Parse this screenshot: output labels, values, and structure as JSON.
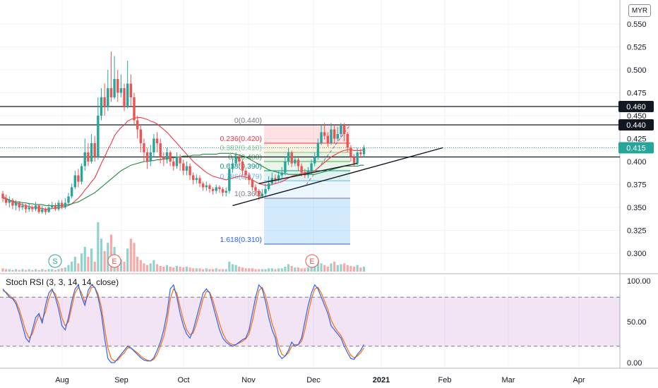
{
  "header": {
    "currency": "MYR"
  },
  "chart_data": {
    "type": "candlestick",
    "x_ticks": [
      "Aug",
      "Sep",
      "Oct",
      "Nov",
      "Dec",
      "2021",
      "Feb",
      "Mar",
      "Apr"
    ],
    "price_axis": {
      "ylim": [
        0.28,
        0.57
      ],
      "ticks": [
        "0.550",
        "0.525",
        "0.500",
        "0.475",
        "0.450",
        "0.425",
        "0.400",
        "0.375",
        "0.350",
        "0.325",
        "0.300"
      ]
    },
    "price_badges": [
      {
        "label": "0.460",
        "value": 0.46,
        "color": "#131722"
      },
      {
        "label": "0.440",
        "value": 0.44,
        "color": "#131722"
      },
      {
        "label": "0.415",
        "value": 0.415,
        "color": "#26a69a"
      }
    ],
    "horizontal_lines": [
      0.46,
      0.44,
      0.405
    ],
    "last_price": 0.415,
    "candles": [
      [
        0.365,
        0.36,
        0.368,
        0.356
      ],
      [
        0.36,
        0.355,
        0.364,
        0.352
      ],
      [
        0.355,
        0.358,
        0.362,
        0.35
      ],
      [
        0.358,
        0.352,
        0.36,
        0.348
      ],
      [
        0.352,
        0.355,
        0.358,
        0.347
      ],
      [
        0.355,
        0.35,
        0.357,
        0.346
      ],
      [
        0.35,
        0.352,
        0.356,
        0.347
      ],
      [
        0.352,
        0.348,
        0.354,
        0.344
      ],
      [
        0.348,
        0.35,
        0.355,
        0.345
      ],
      [
        0.35,
        0.348,
        0.352,
        0.345
      ],
      [
        0.348,
        0.352,
        0.356,
        0.346
      ],
      [
        0.352,
        0.345,
        0.354,
        0.343
      ],
      [
        0.345,
        0.348,
        0.352,
        0.343
      ],
      [
        0.348,
        0.345,
        0.35,
        0.342
      ],
      [
        0.345,
        0.35,
        0.354,
        0.344
      ],
      [
        0.35,
        0.352,
        0.356,
        0.348
      ],
      [
        0.352,
        0.348,
        0.355,
        0.346
      ],
      [
        0.348,
        0.355,
        0.358,
        0.346
      ],
      [
        0.355,
        0.35,
        0.358,
        0.348
      ],
      [
        0.35,
        0.355,
        0.36,
        0.348
      ],
      [
        0.355,
        0.362,
        0.366,
        0.352
      ],
      [
        0.362,
        0.372,
        0.376,
        0.36
      ],
      [
        0.372,
        0.385,
        0.39,
        0.37
      ],
      [
        0.385,
        0.378,
        0.392,
        0.372
      ],
      [
        0.378,
        0.395,
        0.398,
        0.375
      ],
      [
        0.395,
        0.41,
        0.425,
        0.39
      ],
      [
        0.41,
        0.4,
        0.42,
        0.395
      ],
      [
        0.4,
        0.42,
        0.43,
        0.398
      ],
      [
        0.42,
        0.405,
        0.428,
        0.4
      ],
      [
        0.405,
        0.45,
        0.47,
        0.402
      ],
      [
        0.45,
        0.47,
        0.48,
        0.445
      ],
      [
        0.47,
        0.46,
        0.485,
        0.45
      ],
      [
        0.46,
        0.48,
        0.5,
        0.455
      ],
      [
        0.48,
        0.47,
        0.52,
        0.465
      ],
      [
        0.47,
        0.49,
        0.515,
        0.468
      ],
      [
        0.49,
        0.475,
        0.5,
        0.465
      ],
      [
        0.475,
        0.48,
        0.495,
        0.47
      ],
      [
        0.48,
        0.46,
        0.485,
        0.455
      ],
      [
        0.46,
        0.485,
        0.51,
        0.458
      ],
      [
        0.485,
        0.47,
        0.495,
        0.46
      ],
      [
        0.47,
        0.445,
        0.475,
        0.44
      ],
      [
        0.445,
        0.435,
        0.45,
        0.425
      ],
      [
        0.435,
        0.42,
        0.44,
        0.41
      ],
      [
        0.42,
        0.41,
        0.425,
        0.4
      ],
      [
        0.41,
        0.4,
        0.415,
        0.392
      ],
      [
        0.4,
        0.41,
        0.418,
        0.395
      ],
      [
        0.41,
        0.425,
        0.43,
        0.405
      ],
      [
        0.425,
        0.42,
        0.432,
        0.41
      ],
      [
        0.42,
        0.405,
        0.425,
        0.398
      ],
      [
        0.405,
        0.402,
        0.41,
        0.395
      ],
      [
        0.402,
        0.41,
        0.415,
        0.398
      ],
      [
        0.41,
        0.4,
        0.412,
        0.395
      ],
      [
        0.4,
        0.395,
        0.405,
        0.39
      ],
      [
        0.395,
        0.405,
        0.41,
        0.392
      ],
      [
        0.405,
        0.398,
        0.408,
        0.39
      ],
      [
        0.398,
        0.39,
        0.402,
        0.385
      ],
      [
        0.39,
        0.395,
        0.4,
        0.385
      ],
      [
        0.395,
        0.385,
        0.398,
        0.38
      ],
      [
        0.385,
        0.38,
        0.388,
        0.375
      ],
      [
        0.38,
        0.382,
        0.386,
        0.376
      ],
      [
        0.382,
        0.376,
        0.385,
        0.372
      ],
      [
        0.376,
        0.372,
        0.378,
        0.368
      ],
      [
        0.372,
        0.374,
        0.378,
        0.368
      ],
      [
        0.374,
        0.37,
        0.376,
        0.366
      ],
      [
        0.37,
        0.368,
        0.372,
        0.364
      ],
      [
        0.368,
        0.372,
        0.375,
        0.365
      ],
      [
        0.372,
        0.37,
        0.374,
        0.366
      ],
      [
        0.37,
        0.366,
        0.372,
        0.362
      ],
      [
        0.366,
        0.368,
        0.372,
        0.362
      ],
      [
        0.368,
        0.392,
        0.398,
        0.365
      ],
      [
        0.392,
        0.398,
        0.404,
        0.388
      ],
      [
        0.398,
        0.405,
        0.41,
        0.395
      ],
      [
        0.405,
        0.4,
        0.408,
        0.395
      ],
      [
        0.4,
        0.39,
        0.402,
        0.385
      ],
      [
        0.39,
        0.385,
        0.392,
        0.38
      ],
      [
        0.385,
        0.38,
        0.388,
        0.375
      ],
      [
        0.38,
        0.372,
        0.382,
        0.368
      ],
      [
        0.372,
        0.368,
        0.375,
        0.364
      ],
      [
        0.368,
        0.362,
        0.37,
        0.358
      ],
      [
        0.362,
        0.365,
        0.37,
        0.36
      ],
      [
        0.365,
        0.37,
        0.376,
        0.362
      ],
      [
        0.37,
        0.376,
        0.384,
        0.368
      ],
      [
        0.376,
        0.382,
        0.388,
        0.374
      ],
      [
        0.382,
        0.38,
        0.386,
        0.376
      ],
      [
        0.38,
        0.385,
        0.39,
        0.378
      ],
      [
        0.385,
        0.388,
        0.394,
        0.382
      ],
      [
        0.388,
        0.4,
        0.405,
        0.385
      ],
      [
        0.4,
        0.41,
        0.415,
        0.396
      ],
      [
        0.41,
        0.398,
        0.412,
        0.394
      ],
      [
        0.398,
        0.402,
        0.406,
        0.395
      ],
      [
        0.402,
        0.395,
        0.404,
        0.39
      ],
      [
        0.395,
        0.388,
        0.398,
        0.384
      ],
      [
        0.388,
        0.385,
        0.392,
        0.382
      ],
      [
        0.385,
        0.39,
        0.394,
        0.382
      ],
      [
        0.39,
        0.398,
        0.402,
        0.386
      ],
      [
        0.398,
        0.405,
        0.41,
        0.395
      ],
      [
        0.405,
        0.42,
        0.425,
        0.402
      ],
      [
        0.42,
        0.432,
        0.44,
        0.418
      ],
      [
        0.432,
        0.428,
        0.442,
        0.424
      ],
      [
        0.428,
        0.42,
        0.432,
        0.416
      ],
      [
        0.42,
        0.435,
        0.442,
        0.418
      ],
      [
        0.435,
        0.425,
        0.44,
        0.42
      ],
      [
        0.425,
        0.43,
        0.438,
        0.422
      ],
      [
        0.43,
        0.44,
        0.442,
        0.426
      ],
      [
        0.44,
        0.43,
        0.442,
        0.422
      ],
      [
        0.43,
        0.415,
        0.432,
        0.41
      ],
      [
        0.415,
        0.405,
        0.418,
        0.4
      ],
      [
        0.405,
        0.398,
        0.408,
        0.395
      ],
      [
        0.398,
        0.41,
        0.415,
        0.396
      ],
      [
        0.41,
        0.408,
        0.414,
        0.404
      ],
      [
        0.408,
        0.415,
        0.418,
        0.405
      ]
    ],
    "moving_averages": [
      {
        "color": "#f23645",
        "values": [
          0.362,
          0.36,
          0.358,
          0.356,
          0.355,
          0.354,
          0.353,
          0.352,
          0.351,
          0.35,
          0.35,
          0.349,
          0.349,
          0.348,
          0.348,
          0.349,
          0.349,
          0.35,
          0.35,
          0.351,
          0.352,
          0.354,
          0.357,
          0.36,
          0.364,
          0.369,
          0.373,
          0.378,
          0.382,
          0.39,
          0.398,
          0.405,
          0.413,
          0.42,
          0.428,
          0.433,
          0.437,
          0.44,
          0.444,
          0.446,
          0.447,
          0.448,
          0.448,
          0.447,
          0.446,
          0.444,
          0.443,
          0.441,
          0.438,
          0.435,
          0.432,
          0.428,
          0.424,
          0.42,
          0.416,
          0.412,
          0.408,
          0.404,
          0.4,
          0.397,
          0.394,
          0.391,
          0.388,
          0.386,
          0.384,
          0.383,
          0.382,
          0.381,
          0.38,
          0.381,
          0.382,
          0.383,
          0.384,
          0.384,
          0.383,
          0.382,
          0.38,
          0.378,
          0.376,
          0.375,
          0.374,
          0.374,
          0.375,
          0.376,
          0.377,
          0.378,
          0.38,
          0.382,
          0.384,
          0.385,
          0.386,
          0.387,
          0.388,
          0.388,
          0.389,
          0.39,
          0.393,
          0.396,
          0.399,
          0.402,
          0.405,
          0.407,
          0.409,
          0.411,
          0.412,
          0.413,
          0.413,
          0.412,
          0.412,
          0.412,
          0.413
        ]
      },
      {
        "color": "#1e8a3c",
        "values": [
          0.36,
          0.359,
          0.358,
          0.357,
          0.356,
          0.356,
          0.355,
          0.355,
          0.354,
          0.354,
          0.353,
          0.353,
          0.353,
          0.352,
          0.352,
          0.352,
          0.352,
          0.352,
          0.352,
          0.353,
          0.353,
          0.354,
          0.355,
          0.356,
          0.358,
          0.36,
          0.362,
          0.364,
          0.366,
          0.369,
          0.372,
          0.375,
          0.378,
          0.381,
          0.384,
          0.387,
          0.39,
          0.392,
          0.394,
          0.396,
          0.397,
          0.398,
          0.399,
          0.4,
          0.4,
          0.401,
          0.401,
          0.402,
          0.402,
          0.403,
          0.403,
          0.404,
          0.404,
          0.405,
          0.405,
          0.406,
          0.406,
          0.406,
          0.407,
          0.407,
          0.407,
          0.408,
          0.408,
          0.408,
          0.408,
          0.408,
          0.409,
          0.409,
          0.409,
          0.409,
          0.409,
          0.408,
          0.407,
          0.406,
          0.405,
          0.403,
          0.401,
          0.399,
          0.397,
          0.395,
          0.393,
          0.391,
          0.39,
          0.389,
          0.388,
          0.387,
          0.387,
          0.386,
          0.386,
          0.386,
          0.386,
          0.386,
          0.386,
          0.386,
          0.386,
          0.386,
          0.387,
          0.388,
          0.389,
          0.39,
          0.391,
          0.392,
          0.393,
          0.394,
          0.395,
          0.395,
          0.395,
          0.395,
          0.395,
          0.396,
          0.396
        ]
      }
    ],
    "trendlines": [
      {
        "from": [
          70,
          0.352
        ],
        "to": [
          134,
          0.415
        ]
      },
      {
        "from": [
          78,
          0.376
        ],
        "to": [
          108,
          0.398
        ]
      }
    ],
    "fib_levels": [
      {
        "label": "0(0.440)",
        "value": 0.44,
        "color": "#787b86"
      },
      {
        "label": "0.236(0.420)",
        "value": 0.42,
        "color": "#f23645"
      },
      {
        "label": "0.382(0.410)",
        "value": 0.41,
        "color": "#81c784"
      },
      {
        "label": "0.5(0.400)",
        "value": 0.4,
        "color": "#4caf50"
      },
      {
        "label": "0.618(0.390)",
        "value": 0.39,
        "color": "#089981"
      },
      {
        "label": "0.786(0.379)",
        "value": 0.379,
        "color": "#64b5f6"
      },
      {
        "label": "1(0.360)",
        "value": 0.36,
        "color": "#787b86"
      },
      {
        "label": "1.618(0.310)",
        "value": 0.31,
        "color": "#2962ff"
      }
    ],
    "volume": [
      4,
      3,
      3,
      2,
      3,
      2,
      3,
      2,
      3,
      2,
      3,
      2,
      3,
      2,
      3,
      3,
      2,
      3,
      4,
      5,
      8,
      12,
      18,
      10,
      22,
      30,
      18,
      28,
      12,
      60,
      40,
      25,
      35,
      45,
      30,
      20,
      15,
      12,
      28,
      40,
      35,
      18,
      14,
      10,
      8,
      10,
      14,
      9,
      7,
      6,
      8,
      6,
      5,
      7,
      6,
      5,
      6,
      5,
      4,
      4,
      4,
      3,
      4,
      3,
      3,
      4,
      3,
      3,
      3,
      12,
      9,
      8,
      6,
      5,
      4,
      4,
      4,
      3,
      3,
      3,
      3,
      4,
      4,
      3,
      4,
      4,
      6,
      9,
      7,
      5,
      5,
      4,
      4,
      5,
      6,
      8,
      14,
      10,
      8,
      6,
      10,
      12,
      8,
      9,
      10,
      8,
      7,
      6,
      8,
      5,
      6
    ],
    "volume_markers": [
      "S",
      "E",
      "E"
    ],
    "stoch_rsi": {
      "title": "Stoch RSI (3, 3, 14, 14, close)",
      "ticks": [
        "100.00",
        "50.00",
        "0.00"
      ],
      "upper_band": 80,
      "lower_band": 20,
      "k_color": "#2962ff",
      "d_color": "#ff6d00",
      "k": [
        90,
        85,
        80,
        78,
        72,
        60,
        45,
        30,
        25,
        40,
        55,
        60,
        48,
        70,
        85,
        90,
        80,
        65,
        45,
        40,
        55,
        75,
        90,
        95,
        80,
        70,
        88,
        95,
        92,
        80,
        60,
        30,
        5,
        0,
        0,
        5,
        10,
        15,
        20,
        18,
        14,
        10,
        6,
        3,
        2,
        2,
        6,
        15,
        25,
        40,
        60,
        90,
        95,
        80,
        60,
        45,
        35,
        30,
        40,
        55,
        70,
        85,
        90,
        85,
        70,
        55,
        40,
        30,
        25,
        22,
        20,
        22,
        25,
        28,
        30,
        40,
        60,
        80,
        95,
        90,
        75,
        55,
        40,
        30,
        10,
        5,
        8,
        15,
        25,
        20,
        22,
        30,
        50,
        70,
        85,
        95,
        90,
        80,
        70,
        60,
        45,
        40,
        35,
        30,
        20,
        12,
        5,
        4,
        10,
        15,
        22
      ],
      "d": [
        88,
        86,
        82,
        79,
        75,
        65,
        52,
        38,
        30,
        35,
        48,
        58,
        52,
        62,
        78,
        88,
        84,
        72,
        55,
        45,
        50,
        68,
        85,
        92,
        85,
        74,
        82,
        92,
        92,
        84,
        68,
        42,
        18,
        5,
        2,
        3,
        8,
        12,
        18,
        18,
        15,
        12,
        8,
        5,
        3,
        2,
        4,
        10,
        20,
        32,
        50,
        78,
        90,
        85,
        68,
        52,
        40,
        34,
        36,
        48,
        62,
        78,
        87,
        86,
        76,
        62,
        48,
        36,
        28,
        24,
        22,
        22,
        24,
        26,
        29,
        35,
        50,
        70,
        88,
        92,
        82,
        65,
        48,
        36,
        20,
        10,
        8,
        12,
        20,
        22,
        22,
        26,
        40,
        60,
        78,
        90,
        92,
        85,
        75,
        65,
        52,
        44,
        38,
        33,
        25,
        16,
        9,
        6,
        8,
        12,
        18
      ]
    }
  }
}
